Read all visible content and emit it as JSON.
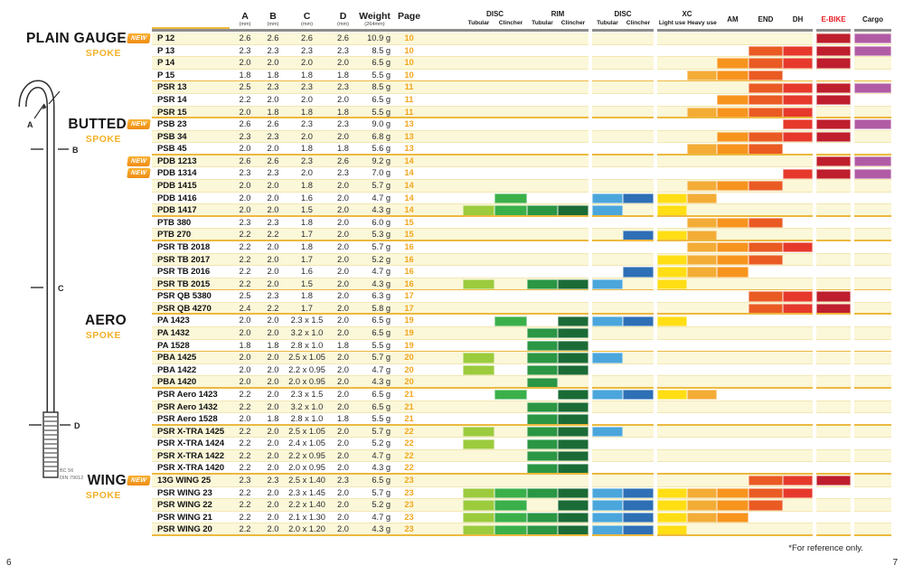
{
  "labels": {
    "new_badge": "NEW",
    "spoke_subtitle": "SPOKE"
  },
  "header": {
    "meta_cols": [
      {
        "key": "a",
        "label": "A",
        "unit": "(mm)"
      },
      {
        "key": "b",
        "label": "B",
        "unit": "(mm)"
      },
      {
        "key": "c",
        "label": "C",
        "unit": "(mm)"
      },
      {
        "key": "d",
        "label": "D",
        "unit": "(mm)"
      },
      {
        "key": "weight",
        "label": "Weight",
        "unit": "(264mm)"
      },
      {
        "key": "page",
        "label": "Page",
        "unit": ""
      }
    ],
    "groups": [
      {
        "label": "DISC",
        "cols": [
          "disc_tubular",
          "disc_clincher"
        ]
      },
      {
        "label": "RIM",
        "cols": [
          "rim_tubular",
          "rim_clincher"
        ]
      },
      {
        "label": "DISC",
        "cols": [
          "disc2_tubular",
          "disc2_clincher"
        ]
      },
      {
        "label": "XC",
        "cols": [
          "xc_light",
          "xc_heavy"
        ]
      }
    ]
  },
  "app_columns": [
    {
      "key": "disc_tubular",
      "group": "DISC",
      "label": "Tubular",
      "color": "#9CCB3D"
    },
    {
      "key": "disc_clincher",
      "group": "DISC",
      "label": "Clincher",
      "color": "#3BB04A"
    },
    {
      "key": "rim_tubular",
      "group": "RIM",
      "label": "Tubular",
      "color": "#2B9644"
    },
    {
      "key": "rim_clincher",
      "group": "RIM",
      "label": "Clincher",
      "color": "#1B6B36"
    },
    {
      "key": "disc2_tubular",
      "group": "DISC",
      "label": "Tubular",
      "color": "#4BA6DC"
    },
    {
      "key": "disc2_clincher",
      "group": "DISC",
      "label": "Clincher",
      "color": "#2E6FB5"
    },
    {
      "key": "xc_light",
      "group": "XC",
      "label": "Light use",
      "color": "#FFDE14"
    },
    {
      "key": "xc_heavy",
      "group": "XC",
      "label": "Heavy use",
      "color": "#F3AC36"
    },
    {
      "key": "am",
      "label": "AM",
      "single": true,
      "color": "#F7941E"
    },
    {
      "key": "end",
      "label": "END",
      "single": true,
      "color": "#EA5B23"
    },
    {
      "key": "dh",
      "label": "DH",
      "single": true,
      "color": "#E6392C"
    },
    {
      "key": "ebike",
      "label": "E-BIKE",
      "single": true,
      "color": "#BE1E2D",
      "label_color": "#ED1C24"
    },
    {
      "key": "cargo",
      "label": "Cargo",
      "single": true,
      "color": "#B15BA5"
    }
  ],
  "sections": [
    {
      "title": "PLAIN GAUGE",
      "subtitle": "SPOKE",
      "rows": [
        {
          "name": "P 12",
          "new": true,
          "a": "2.6",
          "b": "2.6",
          "c": "2.6",
          "d": "2.6",
          "weight": "10.9 g",
          "page": "10",
          "apps": [
            "ebike",
            "cargo"
          ]
        },
        {
          "name": "P 13",
          "a": "2.3",
          "b": "2.3",
          "c": "2.3",
          "d": "2.3",
          "weight": "8.5 g",
          "page": "10",
          "apps": [
            "end",
            "dh",
            "ebike",
            "cargo"
          ]
        },
        {
          "name": "P 14",
          "a": "2.0",
          "b": "2.0",
          "c": "2.0",
          "d": "2.0",
          "weight": "6.5 g",
          "page": "10",
          "apps": [
            "am",
            "end",
            "dh",
            "ebike"
          ]
        },
        {
          "name": "P 15",
          "a": "1.8",
          "b": "1.8",
          "c": "1.8",
          "d": "1.8",
          "weight": "5.5 g",
          "page": "10",
          "apps": [
            "xc_heavy",
            "am",
            "end"
          ]
        },
        {
          "name": "PSR 13",
          "div": true,
          "a": "2.5",
          "b": "2.3",
          "c": "2.3",
          "d": "2.3",
          "weight": "8.5 g",
          "page": "11",
          "apps": [
            "end",
            "dh",
            "ebike",
            "cargo"
          ]
        },
        {
          "name": "PSR 14",
          "a": "2.2",
          "b": "2.0",
          "c": "2.0",
          "d": "2.0",
          "weight": "6.5 g",
          "page": "11",
          "apps": [
            "am",
            "end",
            "dh",
            "ebike"
          ]
        },
        {
          "name": "PSR 15",
          "a": "2.0",
          "b": "1.8",
          "c": "1.8",
          "d": "1.8",
          "weight": "5.5 g",
          "page": "11",
          "apps": [
            "xc_heavy",
            "am",
            "end",
            "dh"
          ]
        }
      ]
    },
    {
      "title": "BUTTED",
      "subtitle": "SPOKE",
      "rows": [
        {
          "name": "PSB 23",
          "new": true,
          "a": "2.6",
          "b": "2.6",
          "c": "2.3",
          "d": "2.3",
          "weight": "9.0 g",
          "page": "13",
          "apps": [
            "dh",
            "ebike",
            "cargo"
          ]
        },
        {
          "name": "PSB 34",
          "a": "2.3",
          "b": "2.3",
          "c": "2.0",
          "d": "2.0",
          "weight": "6.8 g",
          "page": "13",
          "apps": [
            "am",
            "end",
            "dh",
            "ebike"
          ]
        },
        {
          "name": "PSB 45",
          "a": "2.0",
          "b": "2.0",
          "c": "1.8",
          "d": "1.8",
          "weight": "5.6 g",
          "page": "13",
          "apps": [
            "xc_heavy",
            "am",
            "end"
          ]
        },
        {
          "name": "PDB 1213",
          "new": true,
          "div": true,
          "a": "2.6",
          "b": "2.6",
          "c": "2.3",
          "d": "2.6",
          "weight": "9.2 g",
          "page": "14",
          "apps": [
            "ebike",
            "cargo"
          ]
        },
        {
          "name": "PDB 1314",
          "new": true,
          "a": "2.3",
          "b": "2.3",
          "c": "2.0",
          "d": "2.3",
          "weight": "7.0 g",
          "page": "14",
          "apps": [
            "dh",
            "ebike",
            "cargo"
          ]
        },
        {
          "name": "PDB 1415",
          "a": "2.0",
          "b": "2.0",
          "c": "1.8",
          "d": "2.0",
          "weight": "5.7 g",
          "page": "14",
          "apps": [
            "xc_heavy",
            "am",
            "end"
          ]
        },
        {
          "name": "PDB 1416",
          "a": "2.0",
          "b": "2.0",
          "c": "1.6",
          "d": "2.0",
          "weight": "4.7 g",
          "page": "14",
          "apps": [
            "disc_clincher",
            "disc2_tubular",
            "disc2_clincher",
            "xc_light",
            "xc_heavy"
          ]
        },
        {
          "name": "PDB 1417",
          "a": "2.0",
          "b": "2.0",
          "c": "1.5",
          "d": "2.0",
          "weight": "4.3 g",
          "page": "14",
          "apps": [
            "disc_tubular",
            "disc_clincher",
            "rim_tubular",
            "rim_clincher",
            "disc2_tubular",
            "xc_light"
          ]
        },
        {
          "name": "PTB 380",
          "div": true,
          "a": "2.3",
          "b": "2.3",
          "c": "1.8",
          "d": "2.0",
          "weight": "6.0 g",
          "page": "15",
          "apps": [
            "xc_heavy",
            "am",
            "end"
          ]
        },
        {
          "name": "PTB 270",
          "a": "2.2",
          "b": "2.2",
          "c": "1.7",
          "d": "2.0",
          "weight": "5.3 g",
          "page": "15",
          "apps": [
            "disc2_clincher",
            "xc_light",
            "xc_heavy"
          ]
        },
        {
          "name": "PSR TB 2018",
          "div": true,
          "a": "2.2",
          "b": "2.0",
          "c": "1.8",
          "d": "2.0",
          "weight": "5.7 g",
          "page": "16",
          "apps": [
            "xc_heavy",
            "am",
            "end",
            "dh"
          ]
        },
        {
          "name": "PSR TB 2017",
          "a": "2.2",
          "b": "2.0",
          "c": "1.7",
          "d": "2.0",
          "weight": "5.2 g",
          "page": "16",
          "apps": [
            "xc_light",
            "xc_heavy",
            "am",
            "end"
          ]
        },
        {
          "name": "PSR TB 2016",
          "a": "2.2",
          "b": "2.0",
          "c": "1.6",
          "d": "2.0",
          "weight": "4.7 g",
          "page": "16",
          "apps": [
            "disc2_clincher",
            "xc_light",
            "xc_heavy",
            "am"
          ]
        },
        {
          "name": "PSR TB 2015",
          "a": "2.2",
          "b": "2.0",
          "c": "1.5",
          "d": "2.0",
          "weight": "4.3 g",
          "page": "16",
          "apps": [
            "disc_tubular",
            "rim_tubular",
            "rim_clincher",
            "disc2_tubular",
            "xc_light"
          ]
        },
        {
          "name": "PSR QB 5380",
          "div": true,
          "a": "2.5",
          "b": "2.3",
          "c": "1.8",
          "d": "2.0",
          "weight": "6.3 g",
          "page": "17",
          "apps": [
            "end",
            "dh",
            "ebike"
          ]
        },
        {
          "name": "PSR QB 4270",
          "a": "2.4",
          "b": "2.2",
          "c": "1.7",
          "d": "2.0",
          "weight": "5.8 g",
          "page": "17",
          "apps": [
            "end",
            "dh",
            "ebike"
          ]
        }
      ]
    },
    {
      "title": "AERO",
      "subtitle": "SPOKE",
      "rows": [
        {
          "name": "PA 1423",
          "a": "2.0",
          "b": "2.0",
          "c": "2.3 x 1.5",
          "d": "2.0",
          "weight": "6.5 g",
          "page": "19",
          "apps": [
            "disc_clincher",
            "rim_clincher",
            "disc2_tubular",
            "disc2_clincher",
            "xc_light"
          ]
        },
        {
          "name": "PA 1432",
          "a": "2.0",
          "b": "2.0",
          "c": "3.2 x 1.0",
          "d": "2.0",
          "weight": "6.5 g",
          "page": "19",
          "apps": [
            "rim_tubular",
            "rim_clincher"
          ]
        },
        {
          "name": "PA 1528",
          "a": "1.8",
          "b": "1.8",
          "c": "2.8 x 1.0",
          "d": "1.8",
          "weight": "5.5 g",
          "page": "19",
          "apps": [
            "rim_tubular",
            "rim_clincher"
          ]
        },
        {
          "name": "PBA 1425",
          "div": true,
          "a": "2.0",
          "b": "2.0",
          "c": "2.5 x 1.05",
          "d": "2.0",
          "weight": "5.7 g",
          "page": "20",
          "apps": [
            "disc_tubular",
            "rim_tubular",
            "rim_clincher",
            "disc2_tubular"
          ]
        },
        {
          "name": "PBA 1422",
          "a": "2.0",
          "b": "2.0",
          "c": "2.2 x 0.95",
          "d": "2.0",
          "weight": "4.7 g",
          "page": "20",
          "apps": [
            "disc_tubular",
            "rim_tubular",
            "rim_clincher"
          ]
        },
        {
          "name": "PBA 1420",
          "a": "2.0",
          "b": "2.0",
          "c": "2.0 x 0.95",
          "d": "2.0",
          "weight": "4.3 g",
          "page": "20",
          "apps": [
            "rim_tubular"
          ]
        },
        {
          "name": "PSR Aero 1423",
          "div": true,
          "a": "2.2",
          "b": "2.0",
          "c": "2.3 x 1.5",
          "d": "2.0",
          "weight": "6.5 g",
          "page": "21",
          "apps": [
            "disc_clincher",
            "rim_clincher",
            "disc2_tubular",
            "disc2_clincher",
            "xc_light",
            "xc_heavy"
          ]
        },
        {
          "name": "PSR Aero 1432",
          "a": "2.2",
          "b": "2.0",
          "c": "3.2 x 1.0",
          "d": "2.0",
          "weight": "6.5 g",
          "page": "21",
          "apps": [
            "rim_tubular",
            "rim_clincher"
          ]
        },
        {
          "name": "PSR Aero 1528",
          "a": "2.0",
          "b": "1.8",
          "c": "2.8 x 1.0",
          "d": "1.8",
          "weight": "5.5 g",
          "page": "21",
          "apps": [
            "rim_tubular",
            "rim_clincher"
          ]
        },
        {
          "name": "PSR X-TRA 1425",
          "div": true,
          "a": "2.2",
          "b": "2.0",
          "c": "2.5 x 1.05",
          "d": "2.0",
          "weight": "5.7 g",
          "page": "22",
          "apps": [
            "disc_tubular",
            "rim_tubular",
            "rim_clincher",
            "disc2_tubular"
          ]
        },
        {
          "name": "PSR X-TRA 1424",
          "a": "2.2",
          "b": "2.0",
          "c": "2.4 x 1.05",
          "d": "2.0",
          "weight": "5.2 g",
          "page": "22",
          "apps": [
            "disc_tubular",
            "rim_tubular",
            "rim_clincher"
          ]
        },
        {
          "name": "PSR X-TRA 1422",
          "a": "2.2",
          "b": "2.0",
          "c": "2.2 x 0.95",
          "d": "2.0",
          "weight": "4.7 g",
          "page": "22",
          "apps": [
            "rim_tubular",
            "rim_clincher"
          ]
        },
        {
          "name": "PSR X-TRA 1420",
          "a": "2.2",
          "b": "2.0",
          "c": "2.0 x 0.95",
          "d": "2.0",
          "weight": "4.3 g",
          "page": "22",
          "apps": [
            "rim_tubular",
            "rim_clincher"
          ]
        }
      ]
    },
    {
      "title": "WING",
      "subtitle": "SPOKE",
      "rows": [
        {
          "name": "13G WING 25",
          "new": true,
          "a": "2.3",
          "b": "2.3",
          "c": "2.5 x 1.40",
          "d": "2.3",
          "weight": "6.5 g",
          "page": "23",
          "apps": [
            "end",
            "dh",
            "ebike"
          ]
        },
        {
          "name": "PSR WING 23",
          "a": "2.2",
          "b": "2.0",
          "c": "2.3 x 1.45",
          "d": "2.0",
          "weight": "5.7 g",
          "page": "23",
          "apps": [
            "disc_tubular",
            "disc_clincher",
            "rim_tubular",
            "rim_clincher",
            "disc2_tubular",
            "disc2_clincher",
            "xc_light",
            "xc_heavy",
            "am",
            "end",
            "dh"
          ]
        },
        {
          "name": "PSR WING 22",
          "a": "2.2",
          "b": "2.0",
          "c": "2.2 x 1.40",
          "d": "2.0",
          "weight": "5.2 g",
          "page": "23",
          "apps": [
            "disc_tubular",
            "disc_clincher",
            "rim_clincher",
            "disc2_tubular",
            "disc2_clincher",
            "xc_light",
            "xc_heavy",
            "am",
            "end"
          ]
        },
        {
          "name": "PSR WING 21",
          "a": "2.2",
          "b": "2.0",
          "c": "2.1 x 1.30",
          "d": "2.0",
          "weight": "4.7 g",
          "page": "23",
          "apps": [
            "disc_tubular",
            "disc_clincher",
            "rim_tubular",
            "rim_clincher",
            "disc2_tubular",
            "disc2_clincher",
            "xc_light",
            "xc_heavy",
            "am"
          ]
        },
        {
          "name": "PSR WING 20",
          "a": "2.2",
          "b": "2.0",
          "c": "2.0 x 1.20",
          "d": "2.0",
          "weight": "4.3 g",
          "page": "23",
          "apps": [
            "disc_tubular",
            "disc_clincher",
            "rim_tubular",
            "rim_clincher",
            "disc2_tubular",
            "disc2_clincher",
            "xc_light"
          ]
        }
      ]
    }
  ],
  "diagram": {
    "label_a": "A",
    "label_b": "B",
    "label_c": "C",
    "label_d": "D",
    "caption_line1": "BC 56",
    "caption_line2": "DIN 79012"
  },
  "footer": {
    "note": "*For reference only.",
    "page_left": "6",
    "page_right": "7"
  }
}
